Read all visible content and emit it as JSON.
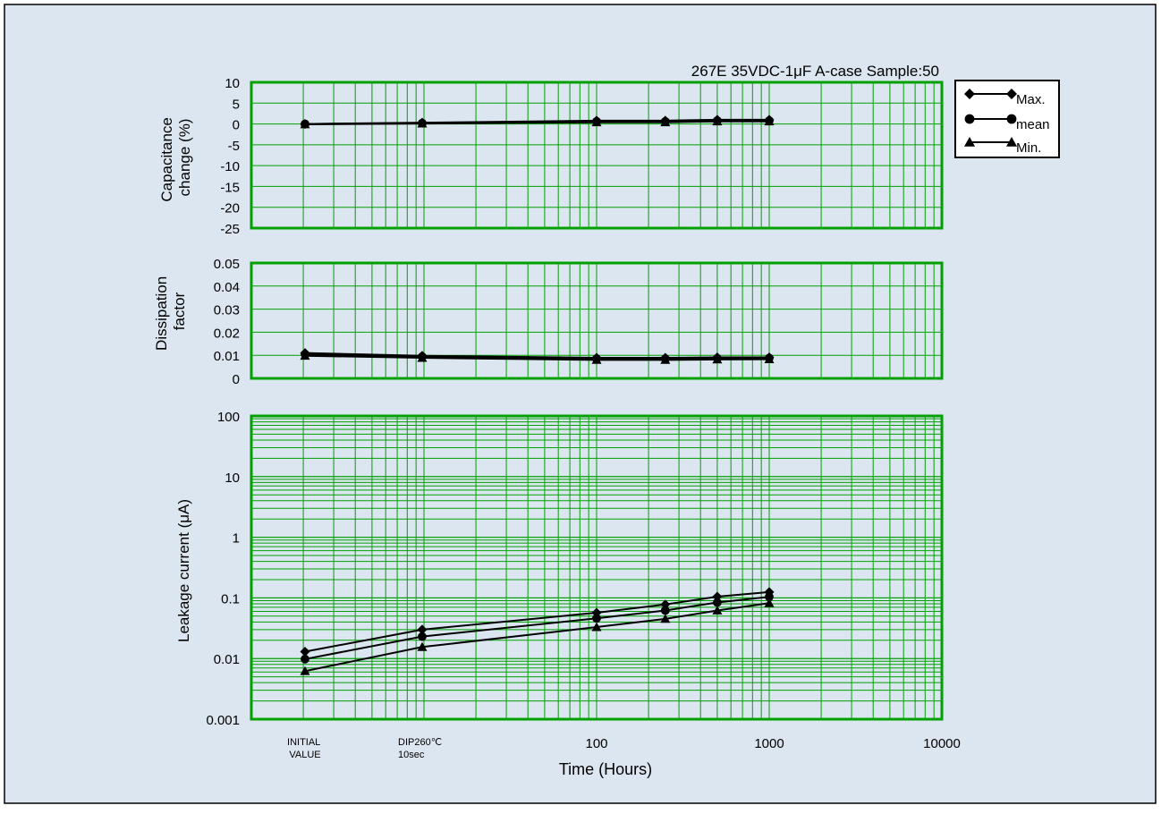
{
  "chart_data": [
    {
      "type": "line",
      "subtitle": "267E 35VDC-1μF A-case Sample:50",
      "ylabel": [
        "Capacitance",
        "change  (%)"
      ],
      "ylim": [
        -25,
        10
      ],
      "yticks": [
        10,
        5,
        0,
        -5,
        -10,
        -15,
        -20,
        -25
      ],
      "x": [
        "INITIAL VALUE",
        "DIP260℃ 10sec",
        100,
        250,
        500,
        1000
      ],
      "series": [
        {
          "name": "Max.",
          "values": [
            0.0,
            0.3,
            0.8,
            0.8,
            1.0,
            1.0
          ]
        },
        {
          "name": "mean",
          "values": [
            0.0,
            0.2,
            0.6,
            0.6,
            0.8,
            0.8
          ]
        },
        {
          "name": "Min.",
          "values": [
            -0.1,
            0.1,
            0.4,
            0.4,
            0.6,
            0.6
          ]
        }
      ]
    },
    {
      "type": "line",
      "ylabel": [
        "Dissipation",
        "factor"
      ],
      "ylim": [
        0,
        0.05
      ],
      "yticks": [
        "0.05",
        "0.04",
        "0.03",
        "0.02",
        "0.01",
        "0"
      ],
      "x": [
        "INITIAL VALUE",
        "DIP260℃ 10sec",
        100,
        250,
        500,
        1000
      ],
      "series": [
        {
          "name": "Max.",
          "values": [
            0.011,
            0.0098,
            0.0089,
            0.0089,
            0.0091,
            0.0091
          ]
        },
        {
          "name": "mean",
          "values": [
            0.0105,
            0.0094,
            0.0085,
            0.0085,
            0.0087,
            0.0088
          ]
        },
        {
          "name": "Min.",
          "values": [
            0.0098,
            0.0089,
            0.008,
            0.008,
            0.0082,
            0.0083
          ]
        }
      ]
    },
    {
      "type": "line",
      "ylabel": "Leakage  current (μA)",
      "yscale": "log",
      "ylim": [
        0.001,
        100
      ],
      "yticks": [
        "100",
        "10",
        "1",
        "0.1",
        "0.01",
        "0.001"
      ],
      "xlabel": "Time (Hours)",
      "x": [
        "INITIAL VALUE",
        "DIP260℃ 10sec",
        100,
        250,
        500,
        1000
      ],
      "series": [
        {
          "name": "Max.",
          "values": [
            0.013,
            0.03,
            0.057,
            0.078,
            0.105,
            0.125
          ]
        },
        {
          "name": "mean",
          "values": [
            0.0098,
            0.023,
            0.046,
            0.062,
            0.084,
            0.104
          ]
        },
        {
          "name": "Min.",
          "values": [
            0.0062,
            0.0155,
            0.033,
            0.045,
            0.062,
            0.082
          ]
        }
      ]
    }
  ],
  "x_axis": {
    "label": "Time (Hours)",
    "scale": "log",
    "special_ticks": [
      [
        "INITIAL",
        "VALUE"
      ],
      [
        "DIP260℃",
        "10sec"
      ]
    ],
    "ticks": [
      "100",
      "1000",
      "10000"
    ]
  },
  "legend": [
    {
      "name": "Max.",
      "marker": "diamond"
    },
    {
      "name": "mean",
      "marker": "circle"
    },
    {
      "name": "Min.",
      "marker": "triangle"
    }
  ],
  "colors": {
    "background": "#dce6f0",
    "grid": "#00a000",
    "series": "#000000"
  }
}
